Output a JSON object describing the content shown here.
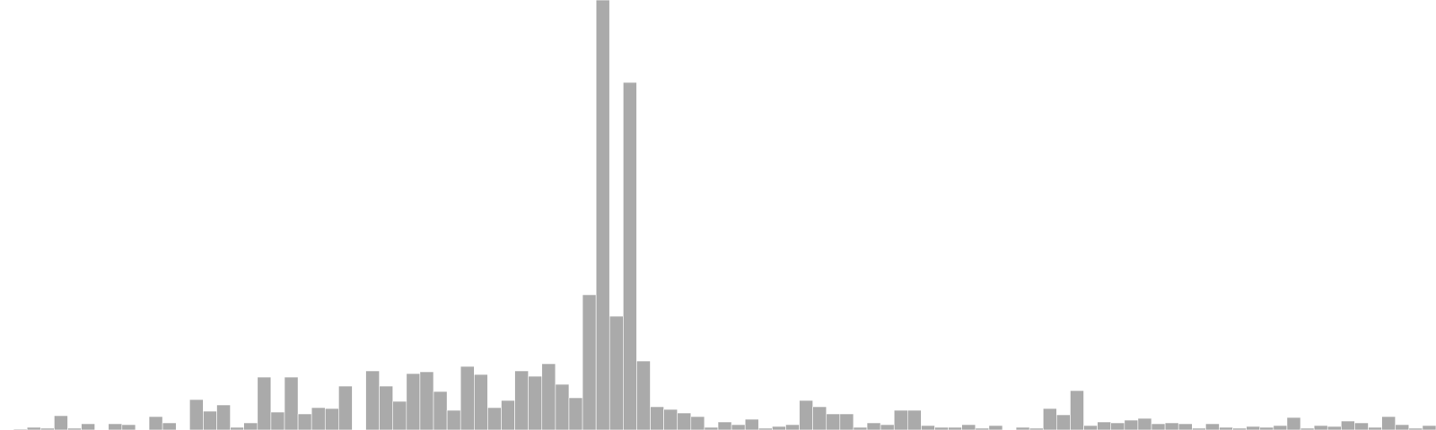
{
  "chart_data": {
    "type": "bar",
    "title": "",
    "xlabel": "",
    "ylabel": "",
    "axes_visible": false,
    "grid": false,
    "legend": "none",
    "bar_color": "#aaaaaa",
    "bar_edge_color": "#ffffff",
    "background_color": "#ffffff",
    "ylim": [
      0,
      480
    ],
    "values": [
      0,
      1,
      3,
      2,
      16,
      2,
      7,
      0,
      7,
      6,
      0,
      15,
      8,
      0,
      34,
      21,
      28,
      3,
      8,
      59,
      20,
      59,
      18,
      25,
      24,
      49,
      0,
      66,
      49,
      32,
      63,
      65,
      43,
      22,
      71,
      62,
      25,
      33,
      66,
      60,
      74,
      51,
      36,
      151,
      480,
      127,
      388,
      77,
      26,
      23,
      19,
      15,
      3,
      9,
      6,
      12,
      2,
      4,
      6,
      33,
      26,
      18,
      18,
      3,
      8,
      6,
      22,
      22,
      5,
      3,
      3,
      6,
      2,
      5,
      0,
      3,
      2,
      24,
      17,
      44,
      5,
      9,
      8,
      11,
      13,
      7,
      8,
      7,
      2,
      7,
      3,
      2,
      4,
      3,
      5,
      14,
      2,
      5,
      4,
      10,
      8,
      3,
      15,
      6,
      2,
      5
    ]
  }
}
